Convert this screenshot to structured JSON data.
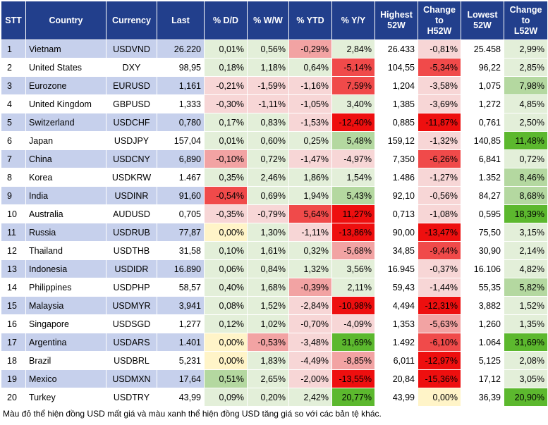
{
  "table": {
    "header": [
      "STT",
      "Country",
      "Currency",
      "Last",
      "% D/D",
      "% W/W",
      "% YTD",
      "% Y/Y",
      "Highest\n52W",
      "Change\nto\nH52W",
      "Lowest\n52W",
      "Change\nto\nL52W"
    ],
    "rows": [
      [
        "1",
        "Vietnam",
        "USDVND",
        "26.220",
        "0,01%",
        "0,56%",
        "-0,29%",
        "2,84%",
        "26.433",
        "-0,81%",
        "25.458",
        "2,99%"
      ],
      [
        "2",
        "United States",
        "DXY",
        "98,95",
        "0,18%",
        "1,18%",
        "0,64%",
        "-5,14%",
        "104,55",
        "-5,34%",
        "96,22",
        "2,85%"
      ],
      [
        "3",
        "Eurozone",
        "EURUSD",
        "1,161",
        "-0,21%",
        "-1,59%",
        "-1,16%",
        "7,59%",
        "1,204",
        "-3,58%",
        "1,075",
        "7,98%"
      ],
      [
        "4",
        "United Kingdom",
        "GBPUSD",
        "1,333",
        "-0,30%",
        "-1,11%",
        "-1,05%",
        "3,40%",
        "1,385",
        "-3,69%",
        "1,272",
        "4,85%"
      ],
      [
        "5",
        "Switzerland",
        "USDCHF",
        "0,780",
        "0,17%",
        "0,83%",
        "-1,53%",
        "-12,40%",
        "0,885",
        "-11,87%",
        "0,761",
        "2,50%"
      ],
      [
        "6",
        "Japan",
        "USDJPY",
        "157,04",
        "0,01%",
        "0,60%",
        "0,25%",
        "5,48%",
        "159,12",
        "-1,32%",
        "140,85",
        "11,48%"
      ],
      [
        "7",
        "China",
        "USDCNY",
        "6,890",
        "-0,10%",
        "0,72%",
        "-1,47%",
        "-4,97%",
        "7,350",
        "-6,26%",
        "6,841",
        "0,72%"
      ],
      [
        "8",
        "Korea",
        "USDKRW",
        "1.467",
        "0,35%",
        "2,46%",
        "1,86%",
        "1,54%",
        "1.486",
        "-1,27%",
        "1.352",
        "8,46%"
      ],
      [
        "9",
        "India",
        "USDINR",
        "91,60",
        "-0,54%",
        "0,69%",
        "1,94%",
        "5,43%",
        "92,10",
        "-0,56%",
        "84,27",
        "8,68%"
      ],
      [
        "10",
        "Australia",
        "AUDUSD",
        "0,705",
        "-0,35%",
        "-0,79%",
        "5,64%",
        "11,27%",
        "0,713",
        "-1,08%",
        "0,595",
        "18,39%"
      ],
      [
        "11",
        "Russia",
        "USDRUB",
        "77,87",
        "0,00%",
        "1,30%",
        "-1,11%",
        "-13,86%",
        "90,00",
        "-13,47%",
        "75,50",
        "3,15%"
      ],
      [
        "12",
        "Thailand",
        "USDTHB",
        "31,58",
        "0,10%",
        "1,61%",
        "0,32%",
        "-5,68%",
        "34,85",
        "-9,44%",
        "30,90",
        "2,14%"
      ],
      [
        "13",
        "Indonesia",
        "USDIDR",
        "16.890",
        "0,06%",
        "0,84%",
        "1,32%",
        "3,56%",
        "16.945",
        "-0,37%",
        "16.106",
        "4,82%"
      ],
      [
        "14",
        "Philippines",
        "USDPHP",
        "58,57",
        "0,40%",
        "1,68%",
        "-0,39%",
        "2,11%",
        "59,43",
        "-1,44%",
        "55,35",
        "5,82%"
      ],
      [
        "15",
        "Malaysia",
        "USDMYR",
        "3,941",
        "0,08%",
        "1,52%",
        "-2,84%",
        "-10,98%",
        "4,494",
        "-12,31%",
        "3,882",
        "1,52%"
      ],
      [
        "16",
        "Singapore",
        "USDSGD",
        "1,277",
        "0,12%",
        "1,02%",
        "-0,70%",
        "-4,09%",
        "1,353",
        "-5,63%",
        "1,260",
        "1,35%"
      ],
      [
        "17",
        "Argentina",
        "USDARS",
        "1.401",
        "0,00%",
        "-0,53%",
        "-3,48%",
        "31,69%",
        "1.492",
        "-6,10%",
        "1.064",
        "31,69%"
      ],
      [
        "18",
        "Brazil",
        "USDBRL",
        "5,231",
        "0,00%",
        "1,83%",
        "-4,49%",
        "-8,85%",
        "6,011",
        "-12,97%",
        "5,125",
        "2,08%"
      ],
      [
        "19",
        "Mexico",
        "USDMXN",
        "17,64",
        "0,51%",
        "2,65%",
        "-2,00%",
        "-13,55%",
        "20,84",
        "-15,36%",
        "17,12",
        "3,05%"
      ],
      [
        "20",
        "Turkey",
        "USDTRY",
        "43,99",
        "0,09%",
        "0,20%",
        "2,42%",
        "20,77%",
        "43,99",
        "0,00%",
        "36,39",
        "20,90%"
      ]
    ],
    "cell_colors": [
      "ggPgwpwg",
      "gggRwRwg",
      "pppRwpwG",
      "pppgwpwg",
      "ggpQwQwg",
      "gggGwpwH",
      "PgppwRwg",
      "ggggwpwG",
      "RggGwpwG",
      "ppRQwpwH",
      "ygpQwQwg",
      "gggPwRwg",
      "ggggwpwg",
      "ggPgwpwG",
      "ggpQwQwg",
      "ggppwPwg",
      "yPpHwRwH",
      "ygpPwQwg",
      "GgpQwQwg",
      "gggHwywH"
    ]
  },
  "footnote": "Màu đỏ thể hiện đồng USD mất giá và màu xanh thể hiện đồng USD tăng giá so với các bản tệ khác."
}
